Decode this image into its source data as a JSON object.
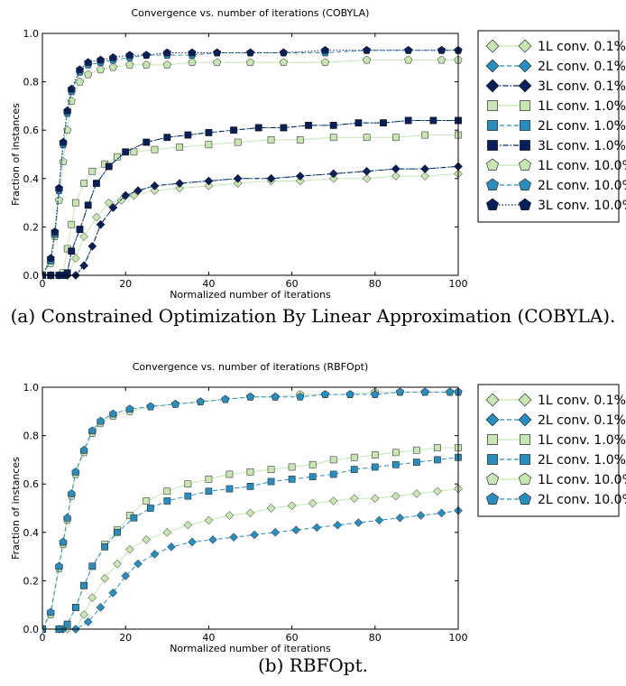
{
  "chart_data": [
    {
      "type": "line",
      "title": "Convergence vs. number of iterations (COBYLA)",
      "xlabel": "Normalized number of iterations",
      "ylabel": "Fraction of instances",
      "xlim": [
        0,
        100
      ],
      "ylim": [
        0,
        1.0
      ],
      "xticks": [
        "0",
        "20",
        "40",
        "60",
        "80",
        "100"
      ],
      "yticks": [
        "0.0",
        "0.2",
        "0.4",
        "0.6",
        "0.8",
        "1.0"
      ],
      "grid": false,
      "legend_position": "outside-right",
      "caption": "(a) Constrained Optimization By Linear Approximation (COBYLA).",
      "series": [
        {
          "name": "1L conv. 0.1%",
          "marker": "diamond",
          "color": "#c8e6b4",
          "line": "solid",
          "x": [
            0,
            2,
            4,
            6,
            8,
            10,
            13,
            16,
            19,
            22,
            27,
            33,
            40,
            47,
            55,
            62,
            70,
            78,
            85,
            92,
            100
          ],
          "y": [
            0,
            0,
            0,
            0,
            0.07,
            0.16,
            0.24,
            0.3,
            0.31,
            0.33,
            0.35,
            0.36,
            0.37,
            0.38,
            0.39,
            0.39,
            0.4,
            0.4,
            0.41,
            0.41,
            0.42
          ]
        },
        {
          "name": "2L conv. 0.1%",
          "marker": "diamond",
          "color": "#2b8cbe",
          "line": "dashed",
          "x": [
            0,
            2,
            4,
            6,
            8,
            10,
            12,
            14,
            17,
            20,
            23,
            27,
            33,
            40,
            47,
            55,
            62,
            70,
            78,
            85,
            92,
            100
          ],
          "y": [
            0,
            0,
            0,
            0,
            0,
            0.04,
            0.12,
            0.21,
            0.28,
            0.33,
            0.35,
            0.37,
            0.38,
            0.39,
            0.4,
            0.4,
            0.41,
            0.42,
            0.43,
            0.44,
            0.44,
            0.45
          ]
        },
        {
          "name": "3L conv. 0.1%",
          "marker": "diamond",
          "color": "#08205a",
          "line": "dashdot",
          "x": [
            0,
            2,
            4,
            6,
            8,
            10,
            12,
            14,
            17,
            20,
            23,
            27,
            33,
            40,
            47,
            55,
            62,
            70,
            78,
            85,
            92,
            100
          ],
          "y": [
            0,
            0,
            0,
            0,
            0,
            0.04,
            0.12,
            0.21,
            0.28,
            0.33,
            0.35,
            0.37,
            0.38,
            0.39,
            0.4,
            0.4,
            0.41,
            0.42,
            0.43,
            0.44,
            0.44,
            0.45
          ]
        },
        {
          "name": "1L conv. 1.0%",
          "marker": "square",
          "color": "#c8e6b4",
          "line": "solid",
          "x": [
            0,
            2,
            4,
            5,
            6,
            7,
            8,
            10,
            12,
            15,
            18,
            22,
            27,
            33,
            40,
            47,
            55,
            62,
            70,
            78,
            85,
            92,
            100
          ],
          "y": [
            0,
            0,
            0,
            0.01,
            0.11,
            0.21,
            0.3,
            0.38,
            0.43,
            0.46,
            0.49,
            0.51,
            0.52,
            0.53,
            0.54,
            0.55,
            0.56,
            0.56,
            0.57,
            0.57,
            0.57,
            0.58,
            0.58
          ]
        },
        {
          "name": "2L conv. 1.0%",
          "marker": "square",
          "color": "#2b8cbe",
          "line": "dashed",
          "x": [
            0,
            2,
            4,
            5,
            6,
            7,
            9,
            11,
            13,
            16,
            20,
            25,
            30,
            35,
            40,
            46,
            52,
            58,
            64,
            70,
            76,
            82,
            88,
            94,
            100
          ],
          "y": [
            0,
            0,
            0,
            0,
            0.01,
            0.1,
            0.19,
            0.29,
            0.38,
            0.45,
            0.51,
            0.55,
            0.57,
            0.58,
            0.59,
            0.6,
            0.61,
            0.61,
            0.62,
            0.62,
            0.63,
            0.63,
            0.64,
            0.64,
            0.64
          ]
        },
        {
          "name": "3L conv. 1.0%",
          "marker": "square",
          "color": "#08205a",
          "line": "dashdot",
          "x": [
            0,
            2,
            4,
            5,
            6,
            7,
            9,
            11,
            13,
            16,
            20,
            25,
            30,
            35,
            40,
            46,
            52,
            58,
            64,
            70,
            76,
            82,
            88,
            94,
            100
          ],
          "y": [
            0,
            0,
            0,
            0,
            0.01,
            0.1,
            0.19,
            0.29,
            0.38,
            0.45,
            0.51,
            0.55,
            0.57,
            0.58,
            0.59,
            0.6,
            0.61,
            0.61,
            0.62,
            0.62,
            0.63,
            0.63,
            0.64,
            0.64,
            0.64
          ]
        },
        {
          "name": "1L conv. 10.0%",
          "marker": "pentagon",
          "color": "#c8e6b4",
          "line": "solid",
          "x": [
            0,
            2,
            3,
            4,
            5,
            6,
            7,
            9,
            11,
            14,
            17,
            21,
            25,
            30,
            36,
            42,
            50,
            58,
            68,
            78,
            88,
            96,
            100
          ],
          "y": [
            0,
            0.05,
            0.16,
            0.31,
            0.47,
            0.6,
            0.72,
            0.8,
            0.83,
            0.85,
            0.86,
            0.87,
            0.87,
            0.87,
            0.88,
            0.88,
            0.88,
            0.88,
            0.88,
            0.89,
            0.89,
            0.89,
            0.89
          ]
        },
        {
          "name": "2L conv. 10.0%",
          "marker": "pentagon",
          "color": "#2b8cbe",
          "line": "dashed",
          "x": [
            0,
            2,
            3,
            4,
            5,
            6,
            7,
            9,
            11,
            14,
            17,
            21,
            25,
            30,
            36,
            42,
            50,
            58,
            68,
            78,
            88,
            96,
            100
          ],
          "y": [
            0,
            0.06,
            0.17,
            0.35,
            0.54,
            0.67,
            0.76,
            0.84,
            0.87,
            0.88,
            0.89,
            0.9,
            0.91,
            0.91,
            0.91,
            0.92,
            0.92,
            0.92,
            0.92,
            0.93,
            0.93,
            0.93,
            0.93
          ]
        },
        {
          "name": "3L conv. 10.0%",
          "marker": "pentagon",
          "color": "#08205a",
          "line": "dotted",
          "x": [
            0,
            2,
            3,
            4,
            5,
            6,
            7,
            9,
            11,
            14,
            17,
            21,
            25,
            30,
            36,
            42,
            50,
            58,
            68,
            78,
            88,
            96,
            100
          ],
          "y": [
            0,
            0.07,
            0.18,
            0.36,
            0.55,
            0.68,
            0.77,
            0.85,
            0.88,
            0.89,
            0.9,
            0.91,
            0.91,
            0.92,
            0.92,
            0.92,
            0.92,
            0.92,
            0.93,
            0.93,
            0.93,
            0.93,
            0.93
          ]
        }
      ]
    },
    {
      "type": "line",
      "title": "Convergence vs. number of iterations (RBFOpt)",
      "xlabel": "Normalized number of iterations",
      "ylabel": "Fraction of instances",
      "xlim": [
        0,
        100
      ],
      "ylim": [
        0,
        1.0
      ],
      "xticks": [
        "0",
        "20",
        "40",
        "60",
        "80",
        "100"
      ],
      "yticks": [
        "0.0",
        "0.2",
        "0.4",
        "0.6",
        "0.8",
        "1.0"
      ],
      "grid": false,
      "legend_position": "outside-right",
      "caption": "(b) RBFOpt.",
      "series": [
        {
          "name": "1L conv. 0.1%",
          "marker": "diamond",
          "color": "#c8e6b4",
          "line": "solid",
          "x": [
            0,
            4,
            6,
            8,
            10,
            12,
            15,
            18,
            21,
            25,
            30,
            35,
            40,
            45,
            50,
            55,
            60,
            65,
            70,
            75,
            80,
            85,
            90,
            95,
            100
          ],
          "y": [
            0,
            0,
            0,
            0,
            0.06,
            0.13,
            0.21,
            0.27,
            0.33,
            0.37,
            0.4,
            0.43,
            0.45,
            0.47,
            0.48,
            0.5,
            0.51,
            0.52,
            0.53,
            0.54,
            0.54,
            0.55,
            0.56,
            0.57,
            0.58
          ]
        },
        {
          "name": "2L conv. 0.1%",
          "marker": "diamond",
          "color": "#2b8cbe",
          "line": "dashed",
          "x": [
            0,
            5,
            8,
            11,
            14,
            17,
            20,
            23,
            27,
            31,
            36,
            41,
            46,
            51,
            56,
            61,
            66,
            71,
            76,
            81,
            86,
            91,
            96,
            100
          ],
          "y": [
            0,
            0,
            0,
            0.03,
            0.09,
            0.15,
            0.22,
            0.27,
            0.31,
            0.34,
            0.36,
            0.37,
            0.38,
            0.39,
            0.4,
            0.41,
            0.42,
            0.43,
            0.44,
            0.45,
            0.46,
            0.47,
            0.48,
            0.49
          ]
        },
        {
          "name": "1L conv. 1.0%",
          "marker": "square",
          "color": "#c8e6b4",
          "line": "solid",
          "x": [
            0,
            4,
            6,
            8,
            10,
            12,
            15,
            18,
            21,
            25,
            30,
            35,
            40,
            45,
            50,
            55,
            60,
            65,
            70,
            75,
            80,
            85,
            90,
            95,
            100
          ],
          "y": [
            0,
            0,
            0.02,
            0.09,
            0.18,
            0.26,
            0.35,
            0.41,
            0.47,
            0.53,
            0.57,
            0.6,
            0.62,
            0.64,
            0.65,
            0.66,
            0.67,
            0.68,
            0.7,
            0.71,
            0.72,
            0.73,
            0.74,
            0.75,
            0.75
          ]
        },
        {
          "name": "2L conv. 1.0%",
          "marker": "square",
          "color": "#2b8cbe",
          "line": "dashed",
          "x": [
            0,
            4,
            6,
            8,
            10,
            12,
            15,
            18,
            22,
            26,
            30,
            35,
            40,
            45,
            50,
            55,
            60,
            65,
            70,
            75,
            80,
            85,
            90,
            95,
            100
          ],
          "y": [
            0,
            0,
            0.02,
            0.09,
            0.18,
            0.26,
            0.34,
            0.4,
            0.46,
            0.5,
            0.53,
            0.55,
            0.57,
            0.58,
            0.59,
            0.61,
            0.62,
            0.63,
            0.64,
            0.66,
            0.67,
            0.68,
            0.69,
            0.7,
            0.71
          ]
        },
        {
          "name": "1L conv. 10.0%",
          "marker": "pentagon",
          "color": "#c8e6b4",
          "line": "solid",
          "x": [
            0,
            2,
            4,
            5,
            6,
            7,
            8,
            10,
            12,
            14,
            17,
            21,
            26,
            32,
            38,
            44,
            50,
            56,
            62,
            68,
            74,
            80,
            86,
            92,
            98,
            100
          ],
          "y": [
            0,
            0.06,
            0.25,
            0.35,
            0.45,
            0.55,
            0.64,
            0.73,
            0.81,
            0.85,
            0.88,
            0.9,
            0.92,
            0.93,
            0.94,
            0.95,
            0.96,
            0.96,
            0.97,
            0.97,
            0.97,
            0.98,
            0.98,
            0.98,
            0.98,
            0.98
          ]
        },
        {
          "name": "2L conv. 10.0%",
          "marker": "pentagon",
          "color": "#2b8cbe",
          "line": "dashed",
          "x": [
            0,
            2,
            4,
            5,
            6,
            7,
            8,
            10,
            12,
            14,
            17,
            21,
            26,
            32,
            38,
            44,
            50,
            56,
            62,
            68,
            74,
            80,
            86,
            92,
            98,
            100
          ],
          "y": [
            0,
            0.07,
            0.26,
            0.36,
            0.46,
            0.56,
            0.65,
            0.74,
            0.82,
            0.86,
            0.89,
            0.91,
            0.92,
            0.93,
            0.94,
            0.95,
            0.96,
            0.96,
            0.96,
            0.97,
            0.97,
            0.97,
            0.98,
            0.98,
            0.98,
            0.98
          ]
        }
      ]
    }
  ]
}
